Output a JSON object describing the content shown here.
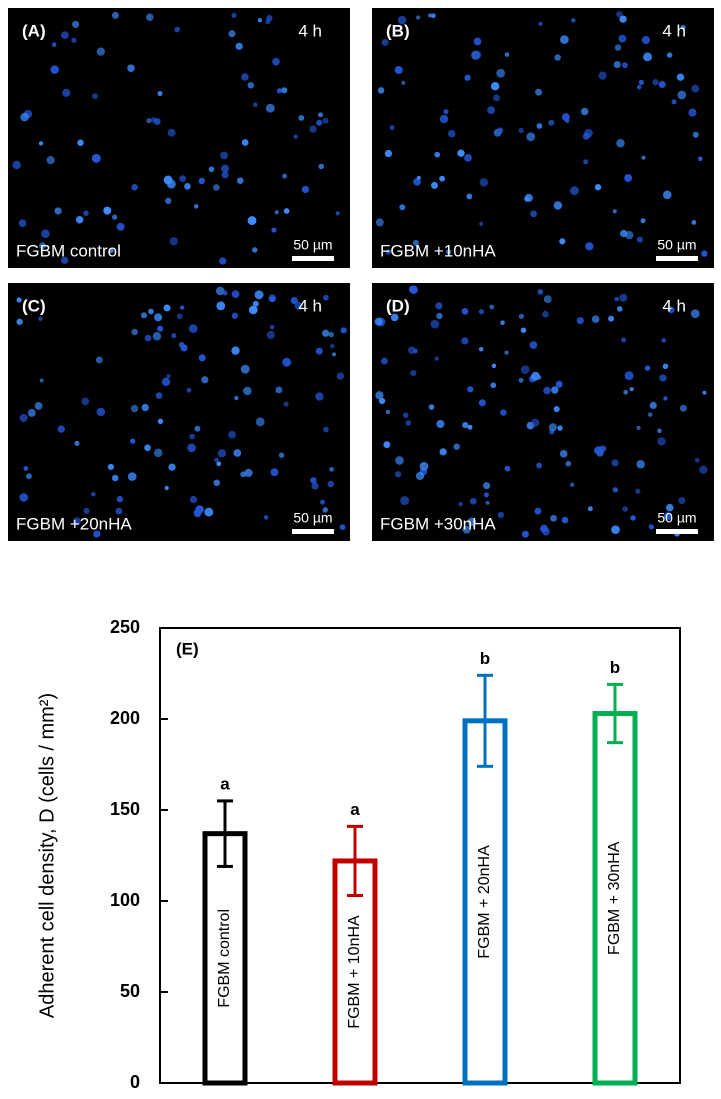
{
  "panels": [
    {
      "label": "(A)",
      "time": "4 h",
      "condition": "FGBM control",
      "scale": "50 µm"
    },
    {
      "label": "(B)",
      "time": "4 h",
      "condition": "FGBM +10nHA",
      "scale": "50 µm"
    },
    {
      "label": "(C)",
      "time": "4 h",
      "condition": "FGBM +20nHA",
      "scale": "50 µm"
    },
    {
      "label": "(D)",
      "time": "4 h",
      "condition": "FGBM +30nHA",
      "scale": "50 µm"
    }
  ],
  "chart_data": {
    "type": "bar",
    "panel_label": "(E)",
    "y_label": "Adherent cell density, D (cells / mm²)",
    "categories": [
      "FGBM control",
      "FGBM + 10nHA",
      "FGBM + 20nHA",
      "FGBM + 30nHA"
    ],
    "values": [
      137,
      122,
      199,
      203
    ],
    "errors": [
      18,
      19,
      25,
      16
    ],
    "bar_letters": [
      "a",
      "a",
      "b",
      "b"
    ],
    "colors": [
      "#000000",
      "#c00000",
      "#0070c0",
      "#00b050"
    ],
    "ylim": [
      0,
      250
    ],
    "yticks": [
      0,
      50,
      100,
      150,
      200,
      250
    ],
    "grid": false
  }
}
